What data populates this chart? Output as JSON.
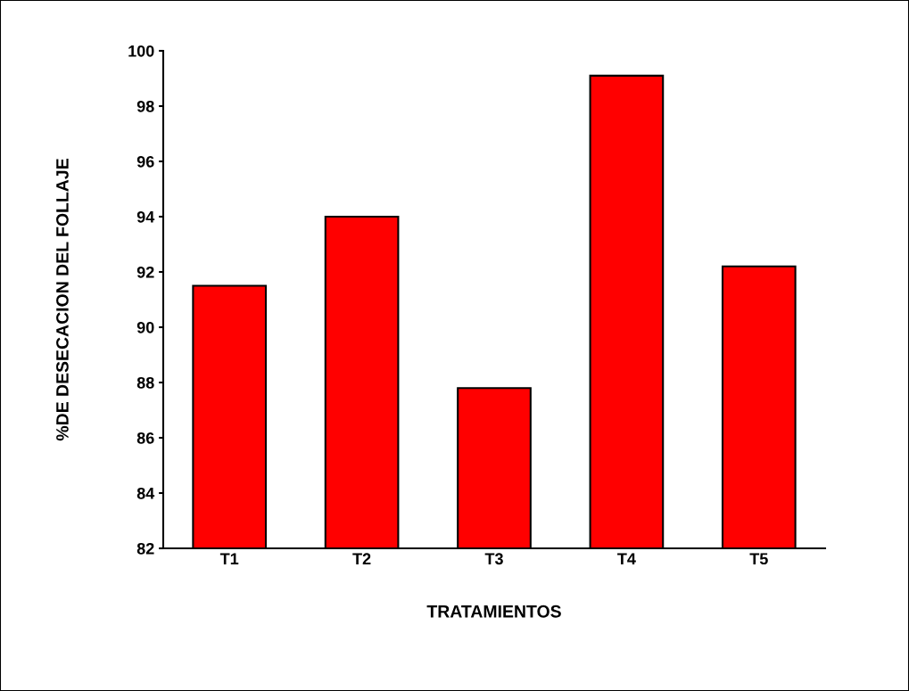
{
  "chart_data": {
    "type": "bar",
    "xlabel": "TRATAMIENTOS",
    "ylabel": "%DE DESECACION DEL FOLLAJE",
    "categories": [
      "T1",
      "T2",
      "T3",
      "T4",
      "T5"
    ],
    "values": [
      91.5,
      94.0,
      87.8,
      99.1,
      92.2
    ],
    "color": "#ff0000",
    "ylim": [
      82,
      100
    ],
    "yticks": [
      82,
      84,
      86,
      88,
      90,
      92,
      94,
      96,
      98,
      100
    ],
    "grid": false
  }
}
